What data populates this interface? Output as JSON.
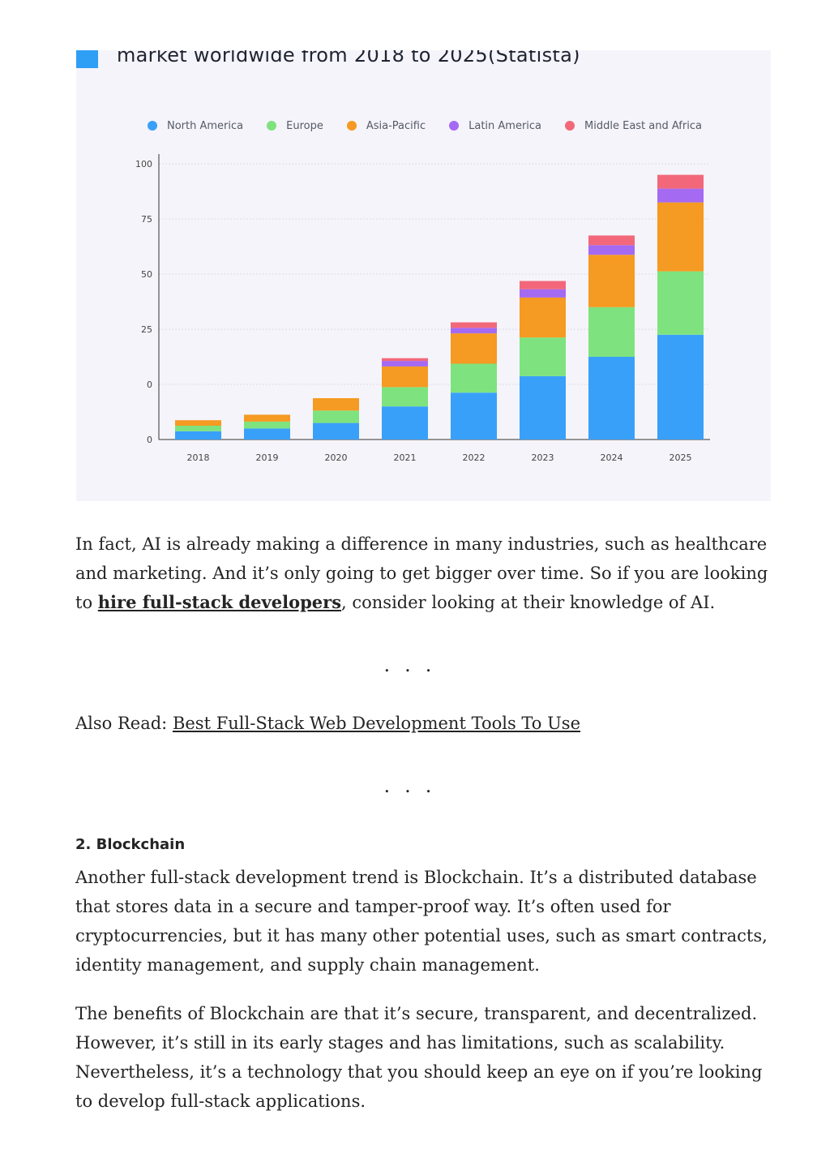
{
  "chart_data": {
    "type": "bar",
    "stacked": true,
    "title": "market worldwide from 2018 to 2025(Statista)",
    "categories": [
      "2018",
      "2019",
      "2020",
      "2021",
      "2022",
      "2023",
      "2024",
      "2025"
    ],
    "y_ticks": [
      "100",
      "75",
      "50",
      "25",
      "0",
      "0"
    ],
    "ylim": [
      0,
      100
    ],
    "grid": true,
    "legend_position": "top",
    "series": [
      {
        "name": "North America",
        "color": "#39a0fa",
        "values": [
          3,
          4,
          6,
          12,
          17,
          23,
          30,
          38
        ]
      },
      {
        "name": "Europe",
        "color": "#7ee37e",
        "values": [
          2,
          2.5,
          4.5,
          7,
          10.5,
          14,
          18,
          23
        ]
      },
      {
        "name": "Asia-Pacific",
        "color": "#f59a22",
        "values": [
          2,
          2.5,
          4.5,
          7.5,
          11,
          14.5,
          19,
          25
        ]
      },
      {
        "name": "Latin America",
        "color": "#a56af2",
        "values": [
          0,
          0,
          0,
          2,
          2,
          3,
          3.5,
          5
        ]
      },
      {
        "name": "Middle East and Africa",
        "color": "#f2687a",
        "values": [
          0,
          0,
          0,
          1,
          2,
          3,
          3.5,
          5
        ]
      }
    ]
  },
  "article": {
    "para1_before": "In fact, AI is already making a difference in many industries, such as healthcare and marketing. And it’s only going to get bigger over time. So if you are looking to ",
    "para1_link": "hire full-stack developers",
    "para1_after": ", consider looking at their knowledge of AI.",
    "separator": "...",
    "also_read_label": "Also Read: ",
    "also_read_link": "Best Full-Stack Web Development Tools To Use",
    "heading": "2. Blockchain",
    "para2": "Another full-stack development trend is Blockchain. It’s a distributed database that stores data in a secure and tamper-proof way. It’s often used for cryptocurrencies, but it has many other potential uses, such as smart contracts, identity management, and supply chain management.",
    "para3": "The benefits of Blockchain are that it’s secure, transparent, and decentralized. However, it’s still in its early stages and has limitations, such as scalability. Nevertheless, it’s a technology that you should keep an eye on if you’re looking to develop full-stack applications."
  }
}
